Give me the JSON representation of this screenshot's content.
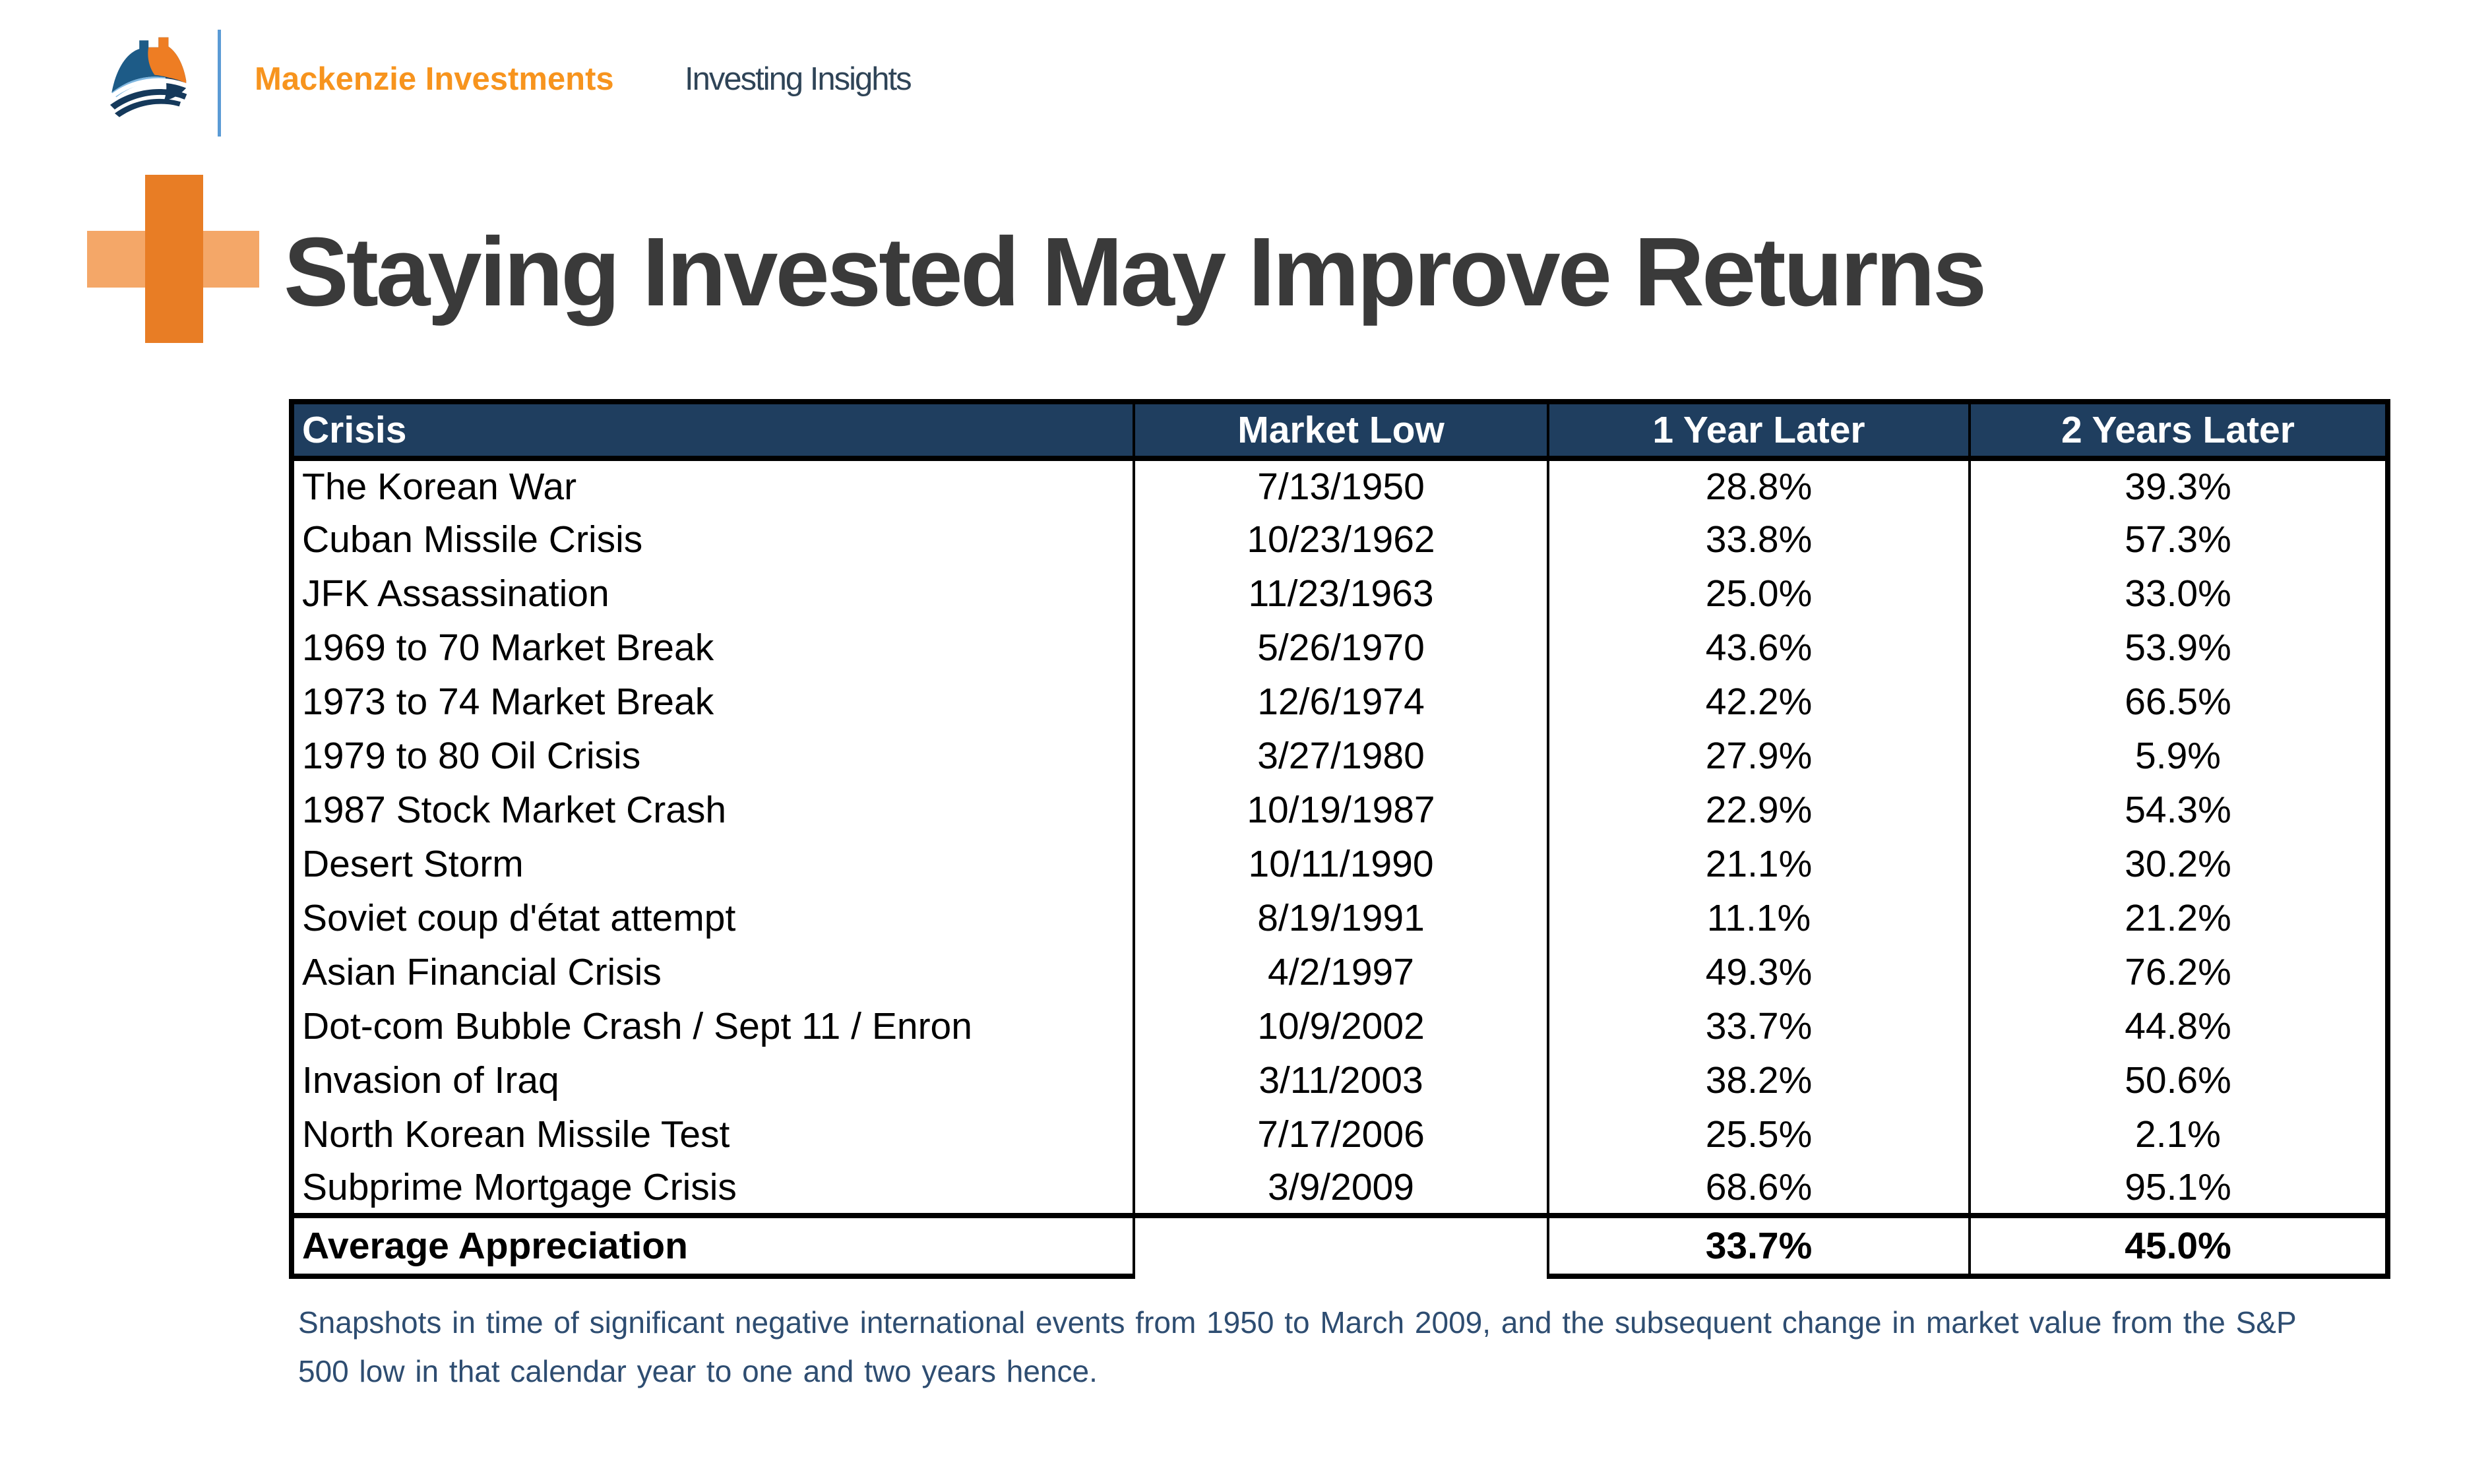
{
  "header": {
    "brand": "Mackenzie Investments",
    "publication": "Investing Insights"
  },
  "title": "Staying Invested May Improve Returns",
  "table": {
    "columns": [
      "Crisis",
      "Market Low",
      "1 Year Later",
      "2 Years Later"
    ],
    "rows": [
      [
        "The Korean War",
        "7/13/1950",
        "28.8%",
        "39.3%"
      ],
      [
        "Cuban Missile Crisis",
        "10/23/1962",
        "33.8%",
        "57.3%"
      ],
      [
        "JFK Assassination",
        "11/23/1963",
        "25.0%",
        "33.0%"
      ],
      [
        "1969 to 70 Market Break",
        "5/26/1970",
        "43.6%",
        "53.9%"
      ],
      [
        "1973 to 74 Market Break",
        "12/6/1974",
        "42.2%",
        "66.5%"
      ],
      [
        "1979 to 80 Oil Crisis",
        "3/27/1980",
        "27.9%",
        "5.9%"
      ],
      [
        "1987 Stock Market Crash",
        "10/19/1987",
        "22.9%",
        "54.3%"
      ],
      [
        "Desert Storm",
        "10/11/1990",
        "21.1%",
        "30.2%"
      ],
      [
        "Soviet coup d'état attempt",
        "8/19/1991",
        "11.1%",
        "21.2%"
      ],
      [
        "Asian Financial Crisis",
        "4/2/1997",
        "49.3%",
        "76.2%"
      ],
      [
        "Dot-com Bubble Crash / Sept 11 / Enron",
        "10/9/2002",
        "33.7%",
        "44.8%"
      ],
      [
        "Invasion of Iraq",
        "3/11/2003",
        "38.2%",
        "50.6%"
      ],
      [
        "North Korean Missile Test",
        "7/17/2006",
        "25.5%",
        "2.1%"
      ],
      [
        "Subprime Mortgage Crisis",
        "3/9/2009",
        "68.6%",
        "95.1%"
      ]
    ],
    "summary": [
      "Average Appreciation",
      "",
      "33.7%",
      "45.0%"
    ]
  },
  "footnote": "Snapshots in time of significant negative international events from 1950 to March 2009, and the subsequent change in market value from the S&P 500 low in that calendar year to one and two years hence.",
  "colors": {
    "header_bg": "#1F3E5F",
    "header_text": "#FFFFFF",
    "brand_orange": "#F7941E",
    "plus_dark_orange": "#E87D25",
    "plus_light_orange": "#F4A768",
    "divider_blue": "#5B9BD5",
    "title_gray": "#3A3A3A",
    "footnote_blue": "#2E4D71",
    "table_border": "#000000",
    "logo_steel_blue": "#1D5B87",
    "logo_light_blue": "#7FB7E0",
    "logo_orange": "#EE7D23",
    "logo_navy": "#15395B"
  }
}
